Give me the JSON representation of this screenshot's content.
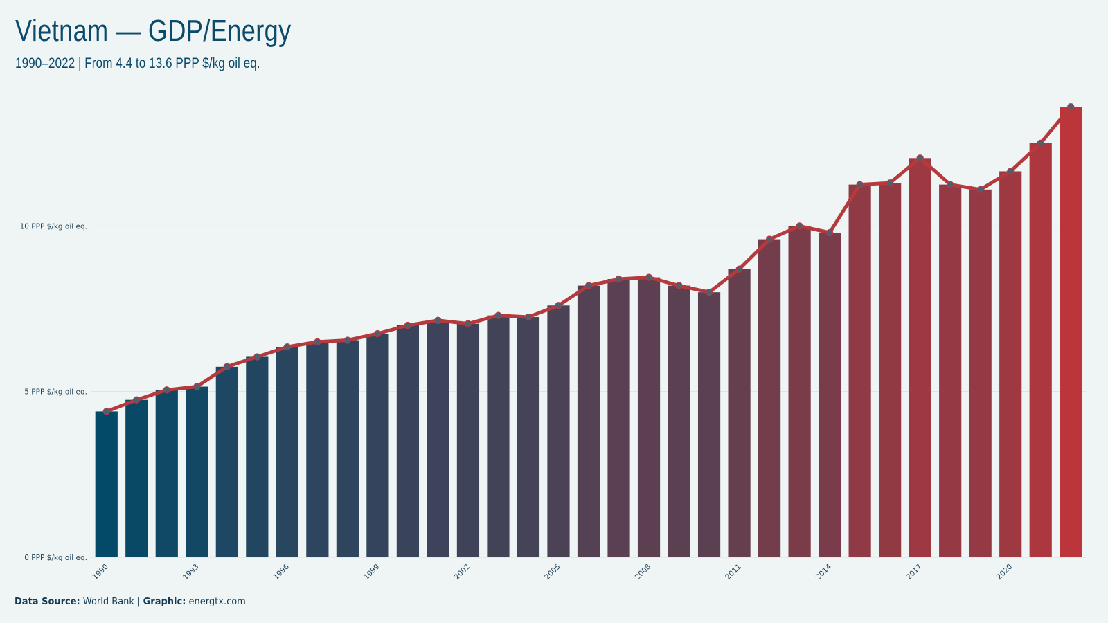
{
  "header": {
    "title": "Vietnam — GDP/Energy",
    "subtitle": "1990–2022 | From 4.4 to 13.6 PPP $/kg oil eq."
  },
  "caption": {
    "source_label": "Data Source:",
    "source_value": "World Bank",
    "separator": "|",
    "graphic_label": "Graphic:",
    "graphic_value": "energtx.com"
  },
  "colors": {
    "bar_start": "#034a68",
    "bar_end": "#bc353a",
    "line": "#b53a3d",
    "marker_fill": "#4d5f73",
    "grid": "#d6e2e4",
    "background": "#eff5f5"
  },
  "chart_data": {
    "type": "bar",
    "x": [
      1990,
      1991,
      1992,
      1993,
      1994,
      1995,
      1996,
      1997,
      1998,
      1999,
      2000,
      2001,
      2002,
      2003,
      2004,
      2005,
      2006,
      2007,
      2008,
      2009,
      2010,
      2011,
      2012,
      2013,
      2014,
      2015,
      2016,
      2017,
      2018,
      2019,
      2020,
      2021,
      2022
    ],
    "values": [
      4.4,
      4.75,
      5.05,
      5.15,
      5.75,
      6.05,
      6.35,
      6.5,
      6.55,
      6.75,
      7.0,
      7.15,
      7.05,
      7.3,
      7.25,
      7.6,
      8.2,
      8.4,
      8.45,
      8.2,
      8.0,
      8.7,
      9.6,
      10.0,
      9.8,
      11.25,
      11.3,
      12.05,
      11.25,
      11.1,
      11.65,
      12.5,
      13.6
    ],
    "overlay": "line-with-markers",
    "ylim": [
      0,
      14
    ],
    "yticks": [
      0,
      5,
      10
    ],
    "ytick_labels": [
      "0 PPP $/kg oil eq.",
      "5 PPP $/kg oil eq.",
      "10 PPP $/kg oil eq."
    ],
    "xtick_labels": [
      "1990",
      "1993",
      "1996",
      "1999",
      "2002",
      "2005",
      "2008",
      "2011",
      "2014",
      "2017",
      "2020"
    ],
    "grid": "horizontal",
    "legend": "none",
    "xlabel": "",
    "ylabel": ""
  }
}
